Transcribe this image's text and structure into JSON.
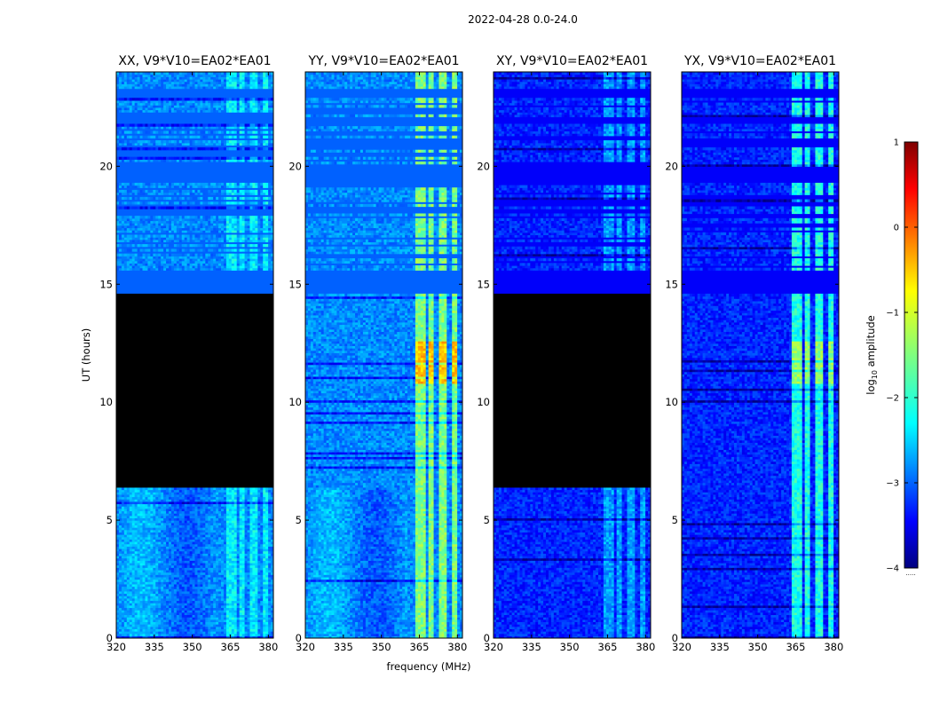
{
  "chart_data": {
    "type": "heatmap",
    "suptitle": "2022-04-28 0.0-24.0",
    "xlabel": "frequency (MHz)",
    "ylabel": "UT (hours)",
    "xlim": [
      320,
      382
    ],
    "ylim": [
      0,
      24
    ],
    "xticks": [
      320,
      335,
      350,
      365,
      380
    ],
    "yticks": [
      0,
      5,
      10,
      15,
      20
    ],
    "colorbar": {
      "label": "log10 amplitude",
      "label_prefix": "log",
      "label_sub": "10",
      "label_suffix": " amplitude",
      "range": [
        -4,
        1
      ],
      "ticks": [
        -4,
        -3,
        -2,
        -1,
        0,
        1
      ],
      "colormap": "jet",
      "extra_label": "....."
    },
    "panels": [
      {
        "title": "XX, V9*V10=EA02*EA01",
        "base_level": -2.7,
        "rfi_level": -2.2,
        "masked_black_hours": [
          6.4,
          14.6
        ]
      },
      {
        "title": "YY, V9*V10=EA02*EA01",
        "base_level": -2.7,
        "rfi_level": -1.5,
        "masked_black_hours": null
      },
      {
        "title": "XY, V9*V10=EA02*EA01",
        "base_level": -3.2,
        "rfi_level": -2.6,
        "masked_black_hours": [
          6.4,
          14.6
        ]
      },
      {
        "title": "YX, V9*V10=EA02*EA01",
        "base_level": -3.2,
        "rfi_level": -2.0,
        "masked_black_hours": null
      }
    ],
    "rfi_channels_mhz": [
      [
        363.5,
        368.0
      ],
      [
        369.0,
        371.0
      ],
      [
        372.5,
        376.0
      ],
      [
        377.5,
        380.0
      ]
    ],
    "strong_burst_hours": [
      10.8,
      12.6
    ],
    "flagged_white_hours": [
      [
        14.6,
        15.6
      ],
      [
        19.3,
        20.0
      ],
      [
        21.8,
        22.1
      ],
      [
        22.9,
        23.3
      ]
    ],
    "sparse_data_hours": [
      15.6,
      23.3
    ]
  }
}
